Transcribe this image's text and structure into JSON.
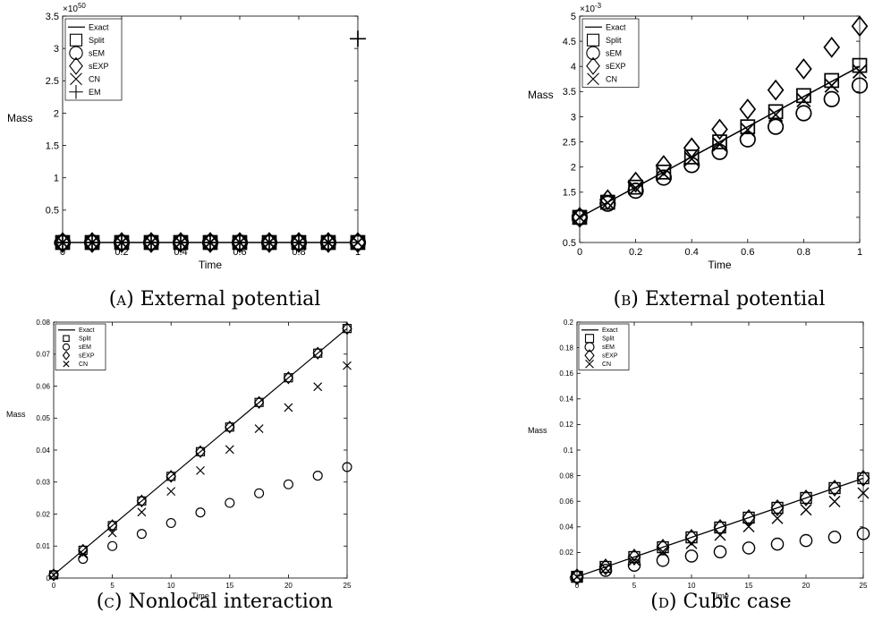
{
  "panels": [
    {
      "id": "a",
      "caption": {
        "letter": "(a)",
        "text": "External potential"
      },
      "chart_data": {
        "type": "scatter",
        "xlabel": "Time",
        "ylabel": "Mass",
        "xlim": [
          0,
          1
        ],
        "ylim": [
          0,
          3.5
        ],
        "x_ticks": [
          0,
          0.2,
          0.4,
          0.6,
          0.8,
          1
        ],
        "x_tick_labels": [
          "0",
          "0.2",
          "0.4",
          "0.6",
          "0.8",
          "1"
        ],
        "y_ticks": [
          0,
          0.5,
          1,
          1.5,
          2,
          2.5,
          3,
          3.5
        ],
        "y_tick_labels": [
          "0",
          "0.5",
          "1",
          "1.5",
          "2",
          "2.5",
          "3",
          "3.5"
        ],
        "y_exponent": "×10",
        "y_exponent_power": "50",
        "legend_position": "top-left",
        "x": [
          0,
          0.1,
          0.2,
          0.3,
          0.4,
          0.5,
          0.6,
          0.7,
          0.8,
          0.9,
          1
        ],
        "series": [
          {
            "name": "Exact",
            "marker": "line",
            "values": [
              0,
              0,
              0,
              0,
              0,
              0,
              0,
              0,
              0,
              0,
              0
            ]
          },
          {
            "name": "Split",
            "marker": "square",
            "values": [
              0,
              0,
              0,
              0,
              0,
              0,
              0,
              0,
              0,
              0,
              0
            ]
          },
          {
            "name": "sEM",
            "marker": "circle",
            "values": [
              0,
              0,
              0,
              0,
              0,
              0,
              0,
              0,
              0,
              0,
              0
            ]
          },
          {
            "name": "sEXP",
            "marker": "diamond",
            "values": [
              0,
              0,
              0,
              0,
              0,
              0,
              0,
              0,
              0,
              0,
              0
            ]
          },
          {
            "name": "CN",
            "marker": "x",
            "values": [
              0,
              0,
              0,
              0,
              0,
              0,
              0,
              0,
              0,
              0,
              0
            ]
          },
          {
            "name": "EM",
            "marker": "plus",
            "values": [
              0,
              0,
              0,
              0,
              0,
              0,
              0,
              0,
              0,
              0,
              3.15
            ]
          }
        ]
      }
    },
    {
      "id": "b",
      "caption": {
        "letter": "(b)",
        "text": "External potential"
      },
      "chart_data": {
        "type": "scatter",
        "xlabel": "Time",
        "ylabel": "Mass",
        "xlim": [
          0,
          1
        ],
        "ylim": [
          0.5,
          5
        ],
        "x_ticks": [
          0,
          0.2,
          0.4,
          0.6,
          0.8,
          1
        ],
        "x_tick_labels": [
          "0",
          "0.2",
          "0.4",
          "0.6",
          "0.8",
          "1"
        ],
        "y_ticks": [
          0.5,
          1,
          1.5,
          2,
          2.5,
          3,
          3.5,
          4,
          4.5,
          5
        ],
        "y_tick_labels": [
          "0.5",
          "1",
          "1.5",
          "2",
          "2.5",
          "3",
          "3.5",
          "4",
          "4.5",
          "5"
        ],
        "y_exponent": "×10",
        "y_exponent_power": "-3",
        "legend_position": "top-left",
        "x": [
          0,
          0.1,
          0.2,
          0.3,
          0.4,
          0.5,
          0.6,
          0.7,
          0.8,
          0.9,
          1
        ],
        "series": [
          {
            "name": "Exact",
            "marker": "line",
            "values": [
              1,
              1.3,
              1.6,
              1.9,
              2.2,
              2.5,
              2.8,
              3.1,
              3.4,
              3.7,
              4.0
            ]
          },
          {
            "name": "Split",
            "marker": "square",
            "values": [
              1,
              1.3,
              1.6,
              1.9,
              2.2,
              2.5,
              2.8,
              3.1,
              3.42,
              3.72,
              4.02
            ]
          },
          {
            "name": "sEM",
            "marker": "circle",
            "values": [
              1,
              1.27,
              1.53,
              1.79,
              2.04,
              2.3,
              2.55,
              2.8,
              3.07,
              3.35,
              3.62
            ]
          },
          {
            "name": "sEXP",
            "marker": "diamond",
            "values": [
              1,
              1.35,
              1.7,
              2.03,
              2.38,
              2.75,
              3.15,
              3.53,
              3.95,
              4.38,
              4.8
            ]
          },
          {
            "name": "CN",
            "marker": "x",
            "values": [
              1,
              1.29,
              1.58,
              1.87,
              2.16,
              2.45,
              2.74,
              3.04,
              3.33,
              3.62,
              3.9
            ]
          }
        ]
      }
    },
    {
      "id": "c",
      "caption": {
        "letter": "(c)",
        "text": "Nonlocal interaction"
      },
      "chart_data": {
        "type": "scatter",
        "xlabel": "Time",
        "ylabel": "Mass",
        "xlim": [
          0,
          25
        ],
        "ylim": [
          0,
          0.08
        ],
        "x_ticks": [
          0,
          5,
          10,
          15,
          20,
          25
        ],
        "x_tick_labels": [
          "0",
          "5",
          "10",
          "15",
          "20",
          "25"
        ],
        "y_ticks": [
          0,
          0.01,
          0.02,
          0.03,
          0.04,
          0.05,
          0.06,
          0.07,
          0.08
        ],
        "y_tick_labels": [
          "0",
          "0.01",
          "0.02",
          "0.03",
          "0.04",
          "0.05",
          "0.06",
          "0.07",
          "0.08"
        ],
        "legend_position": "top-left",
        "x": [
          0,
          2.5,
          5,
          7.5,
          10,
          12.5,
          15,
          17.5,
          20,
          22.5,
          25
        ],
        "series": [
          {
            "name": "Exact",
            "marker": "line",
            "values": [
              0.001,
              0.0087,
              0.0164,
              0.0241,
              0.0318,
              0.0395,
              0.0472,
              0.0549,
              0.0626,
              0.0703,
              0.078
            ]
          },
          {
            "name": "Split",
            "marker": "square",
            "values": [
              0.001,
              0.0087,
              0.0164,
              0.0241,
              0.0318,
              0.0395,
              0.0472,
              0.0549,
              0.0626,
              0.0703,
              0.078
            ]
          },
          {
            "name": "sEM",
            "marker": "circle",
            "values": [
              0.001,
              0.006,
              0.01,
              0.0138,
              0.0172,
              0.0205,
              0.0235,
              0.0265,
              0.0293,
              0.032,
              0.0347
            ]
          },
          {
            "name": "sEXP",
            "marker": "diamond",
            "values": [
              0.001,
              0.0087,
              0.0164,
              0.0241,
              0.0318,
              0.0395,
              0.0472,
              0.0549,
              0.0626,
              0.0703,
              0.078
            ]
          },
          {
            "name": "CN",
            "marker": "x",
            "values": [
              0.001,
              0.0075,
              0.0141,
              0.0206,
              0.0271,
              0.0336,
              0.0402,
              0.0467,
              0.0533,
              0.0598,
              0.0664
            ]
          }
        ]
      }
    },
    {
      "id": "d",
      "caption": {
        "letter": "(d)",
        "text": "Cubic case"
      },
      "chart_data": {
        "type": "scatter",
        "xlabel": "Time",
        "ylabel": "Mass",
        "xlim": [
          0,
          25
        ],
        "ylim": [
          0,
          0.2
        ],
        "x_ticks": [
          0,
          5,
          10,
          15,
          20,
          25
        ],
        "x_tick_labels": [
          "0",
          "5",
          "10",
          "15",
          "20",
          "25"
        ],
        "y_ticks": [
          0,
          0.02,
          0.04,
          0.06,
          0.08,
          0.1,
          0.12,
          0.14,
          0.16,
          0.18,
          0.2
        ],
        "y_tick_labels": [
          "0",
          "0.02",
          "0.04",
          "0.06",
          "0.08",
          "0.1",
          "0.12",
          "0.14",
          "0.16",
          "0.18",
          "0.2"
        ],
        "legend_position": "top-left",
        "x": [
          0,
          2.5,
          5,
          7.5,
          10,
          12.5,
          15,
          17.5,
          20,
          22.5,
          25
        ],
        "series": [
          {
            "name": "Exact",
            "marker": "line",
            "values": [
              0.001,
              0.0087,
              0.0164,
              0.0241,
              0.0318,
              0.0395,
              0.0472,
              0.0549,
              0.0626,
              0.0703,
              0.078
            ]
          },
          {
            "name": "Split",
            "marker": "square",
            "values": [
              0.001,
              0.0087,
              0.0164,
              0.0241,
              0.0318,
              0.0395,
              0.0472,
              0.0549,
              0.0626,
              0.0703,
              0.078
            ]
          },
          {
            "name": "sEM",
            "marker": "circle",
            "values": [
              0.001,
              0.006,
              0.01,
              0.0138,
              0.0172,
              0.0205,
              0.0235,
              0.0265,
              0.0293,
              0.032,
              0.0347
            ]
          },
          {
            "name": "sEXP",
            "marker": "diamond",
            "values": [
              0.001,
              0.0087,
              0.0164,
              0.0241,
              0.0318,
              0.0395,
              0.0472,
              0.0549,
              0.0626,
              0.0703,
              0.078
            ]
          },
          {
            "name": "CN",
            "marker": "x",
            "values": [
              0.001,
              0.0075,
              0.0141,
              0.0206,
              0.0271,
              0.0336,
              0.0402,
              0.0467,
              0.0533,
              0.0598,
              0.0664
            ]
          }
        ]
      }
    }
  ]
}
